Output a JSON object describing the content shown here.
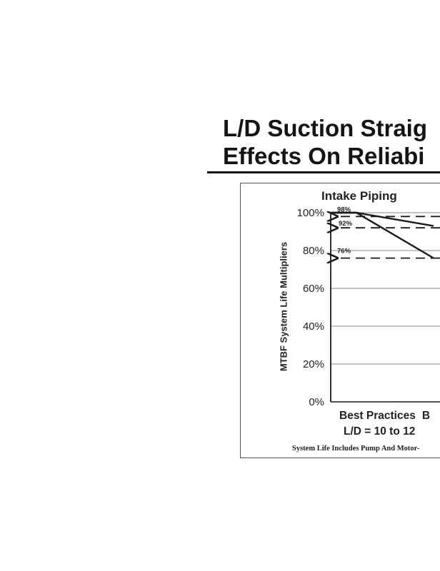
{
  "slide": {
    "title_line1": "L/D Suction Straig",
    "title_line2": "Effects On Reliabi"
  },
  "chart_data": {
    "type": "line",
    "title": "Intake Piping",
    "ylabel": "MTBF System Life Multipliers",
    "ylim": [
      0,
      100
    ],
    "y_ticks": [
      "0%",
      "20%",
      "40%",
      "60%",
      "80%",
      "100%"
    ],
    "x_tick_labels": [
      "Best Practices",
      "B"
    ],
    "x_sub_labels": [
      "L/D = 10 to 12"
    ],
    "grid": true,
    "series": [
      {
        "x": [
          0,
          1,
          4
        ],
        "values": [
          100,
          100,
          93
        ]
      },
      {
        "x": [
          0,
          1,
          4
        ],
        "values": [
          100,
          100,
          76
        ]
      }
    ],
    "reference_lines": [
      {
        "label": "98%",
        "value": 98
      },
      {
        "label": "92%",
        "value": 92
      },
      {
        "label": "76%",
        "value": 76
      }
    ],
    "footnote": "System Life Includes Pump And Motor-"
  },
  "colors": {
    "ink": "#1a1a1a",
    "grid": "#8a8a8a"
  }
}
